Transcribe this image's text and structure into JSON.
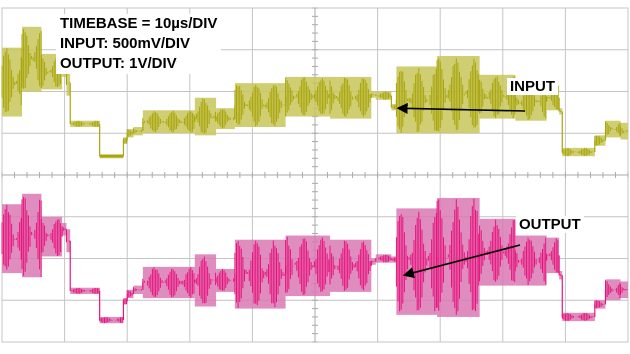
{
  "settings": {
    "timebase": "TIMEBASE = 10µs/DIV",
    "input": "INPUT: 500mV/DIV",
    "output": "OUTPUT: 1V/DIV"
  },
  "annotations": {
    "input_label": "INPUT",
    "output_label": "OUTPUT"
  },
  "colors": {
    "input_trace": "#a9a50c",
    "input_band": "#c8c55a",
    "output_trace": "#e6157e",
    "output_band": "#d978b4",
    "grid": "#c4c4c4",
    "background": "#ffffff"
  },
  "chart_data": {
    "type": "line",
    "title": "",
    "xlabel": "",
    "ylabel": "",
    "x_units": "µs",
    "xlim": [
      0,
      100
    ],
    "grid": true,
    "divisions": {
      "horizontal": 10,
      "vertical": 8
    },
    "series": [
      {
        "name": "INPUT",
        "volts_per_div": 0.5,
        "envelope_div": [
          {
            "t0": 0,
            "t1": 3.2,
            "top": 7.05,
            "bot": 5.4
          },
          {
            "t0": 3.2,
            "t1": 6.3,
            "top": 7.55,
            "bot": 6.0
          },
          {
            "t0": 6.3,
            "t1": 9.6,
            "top": 6.9,
            "bot": 6.05
          },
          {
            "t0": 9.6,
            "t1": 10.3,
            "top": 6.65,
            "bot": 6.35
          },
          {
            "t0": 10.3,
            "t1": 10.9,
            "top": 6.5,
            "bot": 5.9
          },
          {
            "t0": 10.9,
            "t1": 15.6,
            "top": 5.3,
            "bot": 5.15
          },
          {
            "t0": 15.6,
            "t1": 19.4,
            "top": 4.5,
            "bot": 4.4
          },
          {
            "t0": 19.4,
            "t1": 20.0,
            "top": 4.9,
            "bot": 4.75
          },
          {
            "t0": 20.0,
            "t1": 21.0,
            "top": 5.1,
            "bot": 4.9
          },
          {
            "t0": 21.0,
            "t1": 22.5,
            "top": 5.15,
            "bot": 4.95
          },
          {
            "t0": 22.5,
            "t1": 30.8,
            "top": 5.55,
            "bot": 5.0
          },
          {
            "t0": 30.8,
            "t1": 34.2,
            "top": 5.85,
            "bot": 4.95
          },
          {
            "t0": 34.2,
            "t1": 37.2,
            "top": 5.6,
            "bot": 5.1
          },
          {
            "t0": 37.2,
            "t1": 45.3,
            "top": 6.2,
            "bot": 5.15
          },
          {
            "t0": 45.3,
            "t1": 52.4,
            "top": 6.35,
            "bot": 5.4
          },
          {
            "t0": 52.4,
            "t1": 59.0,
            "top": 6.35,
            "bot": 5.35
          },
          {
            "t0": 59.0,
            "t1": 59.7,
            "top": 6.0,
            "bot": 5.85
          },
          {
            "t0": 59.7,
            "t1": 62.2,
            "top": 6.0,
            "bot": 5.8
          },
          {
            "t0": 62.2,
            "t1": 63.0,
            "top": 5.7,
            "bot": 5.55
          },
          {
            "t0": 63.0,
            "t1": 69.5,
            "top": 6.6,
            "bot": 5.0
          },
          {
            "t0": 69.5,
            "t1": 76.3,
            "top": 6.85,
            "bot": 5.0
          },
          {
            "t0": 76.3,
            "t1": 82.0,
            "top": 6.4,
            "bot": 5.35
          },
          {
            "t0": 82.0,
            "t1": 87.0,
            "top": 6.2,
            "bot": 5.3
          },
          {
            "t0": 87.0,
            "t1": 89.0,
            "top": 6.15,
            "bot": 5.55
          },
          {
            "t0": 89.0,
            "t1": 89.5,
            "top": 5.6,
            "bot": 5.45
          },
          {
            "t0": 89.5,
            "t1": 94.7,
            "top": 4.65,
            "bot": 4.45
          },
          {
            "t0": 94.7,
            "t1": 96.4,
            "top": 4.95,
            "bot": 4.7
          },
          {
            "t0": 96.4,
            "t1": 98.8,
            "top": 5.3,
            "bot": 4.9
          },
          {
            "t0": 98.8,
            "t1": 101.0,
            "top": 5.25,
            "bot": 4.85
          }
        ]
      },
      {
        "name": "OUTPUT",
        "volts_per_div": 1.0,
        "envelope_div": [
          {
            "t0": 0,
            "t1": 3.2,
            "top": 3.3,
            "bot": 1.65
          },
          {
            "t0": 3.2,
            "t1": 6.3,
            "top": 3.55,
            "bot": 1.55
          },
          {
            "t0": 6.3,
            "t1": 9.6,
            "top": 3.0,
            "bot": 2.05
          },
          {
            "t0": 9.6,
            "t1": 10.3,
            "top": 2.85,
            "bot": 2.55
          },
          {
            "t0": 10.3,
            "t1": 10.9,
            "top": 2.7,
            "bot": 2.15
          },
          {
            "t0": 10.9,
            "t1": 15.6,
            "top": 1.3,
            "bot": 1.15
          },
          {
            "t0": 15.6,
            "t1": 19.4,
            "top": 0.6,
            "bot": 0.45
          },
          {
            "t0": 19.4,
            "t1": 20.0,
            "top": 1.05,
            "bot": 0.9
          },
          {
            "t0": 20.0,
            "t1": 21.0,
            "top": 1.25,
            "bot": 1.05
          },
          {
            "t0": 21.0,
            "t1": 22.5,
            "top": 1.35,
            "bot": 1.15
          },
          {
            "t0": 22.5,
            "t1": 30.8,
            "top": 1.8,
            "bot": 1.05
          },
          {
            "t0": 30.8,
            "t1": 34.2,
            "top": 2.1,
            "bot": 0.85
          },
          {
            "t0": 34.2,
            "t1": 37.2,
            "top": 1.75,
            "bot": 1.2
          },
          {
            "t0": 37.2,
            "t1": 45.3,
            "top": 2.45,
            "bot": 0.8
          },
          {
            "t0": 45.3,
            "t1": 52.4,
            "top": 2.55,
            "bot": 1.1
          },
          {
            "t0": 52.4,
            "t1": 59.0,
            "top": 2.45,
            "bot": 1.2
          },
          {
            "t0": 59.0,
            "t1": 59.7,
            "top": 2.0,
            "bot": 1.85
          },
          {
            "t0": 59.7,
            "t1": 62.2,
            "top": 2.1,
            "bot": 1.9
          },
          {
            "t0": 62.2,
            "t1": 63.0,
            "top": 2.05,
            "bot": 1.9
          },
          {
            "t0": 63.0,
            "t1": 69.5,
            "top": 3.2,
            "bot": 0.65
          },
          {
            "t0": 69.5,
            "t1": 76.3,
            "top": 3.45,
            "bot": 0.6
          },
          {
            "t0": 76.3,
            "t1": 82.0,
            "top": 2.95,
            "bot": 1.35
          },
          {
            "t0": 82.0,
            "t1": 87.0,
            "top": 2.55,
            "bot": 1.35
          },
          {
            "t0": 87.0,
            "t1": 89.0,
            "top": 2.5,
            "bot": 1.65
          },
          {
            "t0": 89.0,
            "t1": 89.5,
            "top": 1.7,
            "bot": 1.5
          },
          {
            "t0": 89.5,
            "t1": 94.7,
            "top": 0.7,
            "bot": 0.5
          },
          {
            "t0": 94.7,
            "t1": 96.4,
            "top": 1.0,
            "bot": 0.8
          },
          {
            "t0": 96.4,
            "t1": 98.8,
            "top": 1.5,
            "bot": 1.0
          },
          {
            "t0": 98.8,
            "t1": 101.0,
            "top": 1.45,
            "bot": 1.05
          }
        ]
      }
    ],
    "annotations": [
      {
        "text": "INPUT",
        "arrow_to_t": 63.2,
        "arrow_to_div": 5.6
      },
      {
        "text": "OUTPUT",
        "arrow_to_t": 64.2,
        "arrow_to_div": 1.6
      }
    ]
  }
}
